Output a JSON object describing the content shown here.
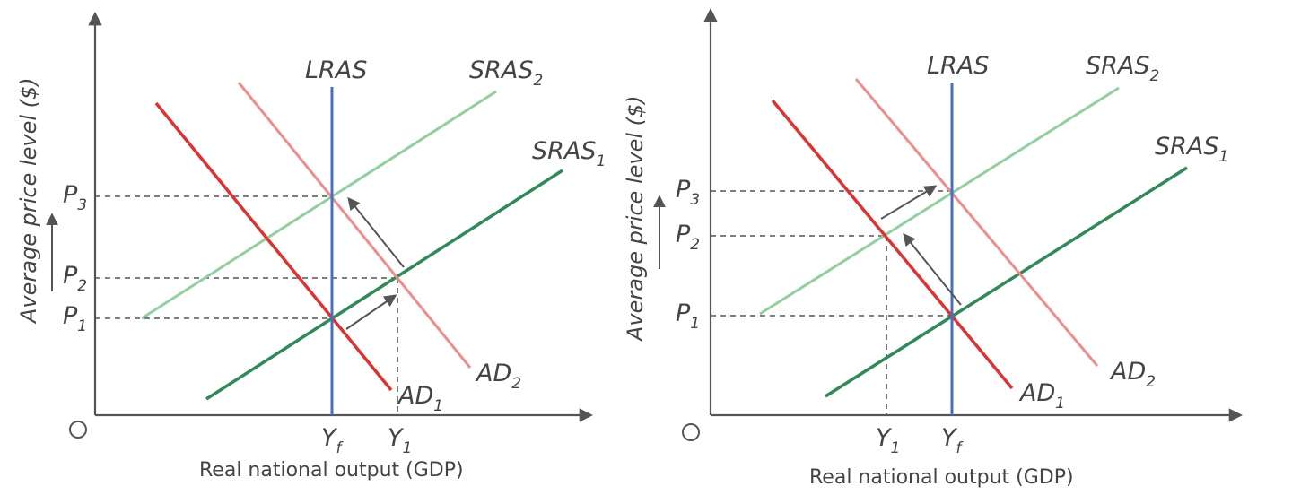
{
  "diagrams": [
    {
      "id": "left",
      "ylabel": "Average price level ($)",
      "xlabel": "Real national output (GDP)",
      "origin": "O",
      "curves": {
        "lras": {
          "label": "LRAS",
          "sub": "",
          "color": "#4a6fc0"
        },
        "sras1": {
          "label": "SRAS",
          "sub": "1",
          "color": "#2e8b57"
        },
        "sras2": {
          "label": "SRAS",
          "sub": "2",
          "color": "#8fd19e"
        },
        "ad1": {
          "label": "AD",
          "sub": "1",
          "color": "#e03131"
        },
        "ad2": {
          "label": "AD",
          "sub": "2",
          "color": "#f08c8c"
        }
      },
      "price_labels": [
        {
          "label": "P",
          "sub": "3"
        },
        {
          "label": "P",
          "sub": "2"
        },
        {
          "label": "P",
          "sub": "1"
        }
      ],
      "output_labels": [
        {
          "label": "Y",
          "sub": "f"
        },
        {
          "label": "Y",
          "sub": "1"
        }
      ]
    },
    {
      "id": "right",
      "ylabel": "Average price level ($)",
      "xlabel": "Real national output (GDP)",
      "origin": "O",
      "curves": {
        "lras": {
          "label": "LRAS",
          "sub": "",
          "color": "#4a6fc0"
        },
        "sras1": {
          "label": "SRAS",
          "sub": "1",
          "color": "#2e8b57"
        },
        "sras2": {
          "label": "SRAS",
          "sub": "2",
          "color": "#8fd19e"
        },
        "ad1": {
          "label": "AD",
          "sub": "1",
          "color": "#e03131"
        },
        "ad2": {
          "label": "AD",
          "sub": "2",
          "color": "#f08c8c"
        }
      },
      "price_labels": [
        {
          "label": "P",
          "sub": "3"
        },
        {
          "label": "P",
          "sub": "2"
        },
        {
          "label": "P",
          "sub": "1"
        }
      ],
      "output_labels": [
        {
          "label": "Y",
          "sub": "1"
        },
        {
          "label": "Y",
          "sub": "f"
        }
      ]
    }
  ]
}
